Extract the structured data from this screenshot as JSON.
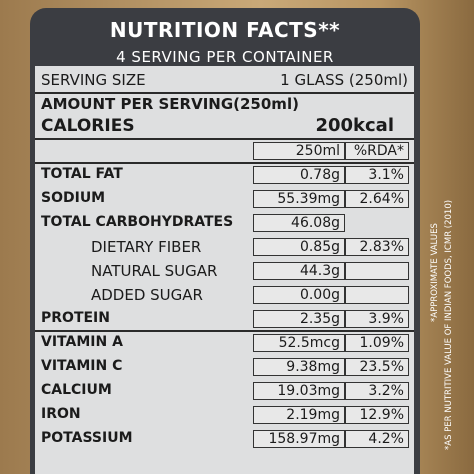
{
  "header": {
    "title": "NUTRITION FACTS**",
    "subtitle": "4 SERVING PER CONTAINER"
  },
  "serving": {
    "label": "SERVING SIZE",
    "value": "1 GLASS (250ml)"
  },
  "amount_per_serving": "AMOUNT PER SERVING(250ml)",
  "calories": {
    "label": "CALORIES",
    "value": "200kcal"
  },
  "columns": {
    "amount": "250ml",
    "rda": "%RDA*"
  },
  "nutrients": [
    {
      "name": "TOTAL FAT",
      "amount": "0.78g",
      "rda": "3.1%"
    },
    {
      "name": "SODIUM",
      "amount": "55.39mg",
      "rda": "2.64%"
    },
    {
      "name": "TOTAL CARBOHYDRATES",
      "amount": "46.08g",
      "rda": ""
    },
    {
      "name": "DIETARY FIBER",
      "amount": "0.85g",
      "rda": "2.83%"
    },
    {
      "name": "NATURAL SUGAR",
      "amount": "44.3g",
      "rda": ""
    },
    {
      "name": "ADDED SUGAR",
      "amount": "0.00g",
      "rda": ""
    },
    {
      "name": "PROTEIN",
      "amount": "2.35g",
      "rda": "3.9%"
    },
    {
      "name": "VITAMIN A",
      "amount": "52.5mcg",
      "rda": "1.09%"
    },
    {
      "name": "VITAMIN C",
      "amount": "9.38mg",
      "rda": "23.5%"
    },
    {
      "name": "CALCIUM",
      "amount": "19.03mg",
      "rda": "3.2%"
    },
    {
      "name": "IRON",
      "amount": "2.19mg",
      "rda": "12.9%"
    },
    {
      "name": "POTASSIUM",
      "amount": "158.97mg",
      "rda": "4.2%"
    }
  ],
  "side_notes": {
    "line1": "*APPROXIMATE VALUES",
    "line2": "*AS PER NUTRITIVE VALUE OF INDIAN FOODS, ICMR (2010)"
  },
  "colors": {
    "panel": "#3b3d42",
    "table": "#dedfe0",
    "background": "#c9a978"
  }
}
